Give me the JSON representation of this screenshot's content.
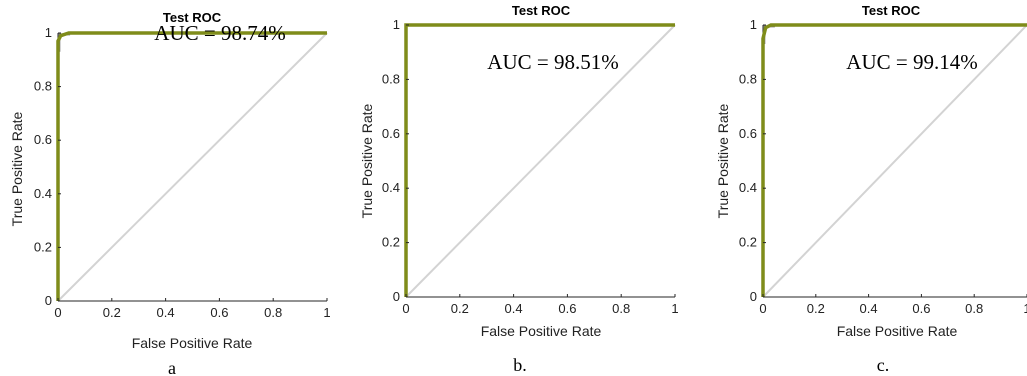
{
  "figure": {
    "colors": {
      "roc": "#7f8c1a",
      "diagonal": "#d3d3d3",
      "axis": "#262626",
      "near_origin": "#808080"
    }
  },
  "chart_data": [
    {
      "type": "line",
      "title": "Test ROC",
      "xlabel": "False Positive Rate",
      "ylabel": "True Positive Rate",
      "xlim": [
        0,
        1
      ],
      "ylim": [
        0,
        1
      ],
      "xticks": [
        "0",
        "0.2",
        "0.4",
        "0.6",
        "0.8",
        "1"
      ],
      "yticks": [
        "0",
        "0.2",
        "0.4",
        "0.6",
        "0.8",
        "1"
      ],
      "annotation": "AUC = 98.74%",
      "caption": "a",
      "series": [
        {
          "x": [
            0,
            0,
            0.01,
            0.04,
            1
          ],
          "y": [
            0,
            0.97,
            0.99,
            1,
            1
          ]
        },
        {
          "x": [
            0,
            1
          ],
          "y": [
            0,
            1
          ]
        }
      ]
    },
    {
      "type": "line",
      "title": "Test ROC",
      "xlabel": "False Positive Rate",
      "ylabel": "True Positive Rate",
      "xlim": [
        0,
        1
      ],
      "ylim": [
        0,
        1
      ],
      "xticks": [
        "0",
        "0.2",
        "0.4",
        "0.6",
        "0.8",
        "1"
      ],
      "yticks": [
        "0",
        "0.2",
        "0.4",
        "0.6",
        "0.8",
        "1"
      ],
      "annotation": "AUC = 98.51%",
      "caption": "b.",
      "series": [
        {
          "x": [
            0,
            0,
            1
          ],
          "y": [
            0,
            1,
            1
          ]
        },
        {
          "x": [
            0,
            1
          ],
          "y": [
            0,
            1
          ]
        }
      ]
    },
    {
      "type": "line",
      "title": "Test ROC",
      "xlabel": "False Positive Rate",
      "ylabel": "True Positive Rate",
      "xlim": [
        0,
        1
      ],
      "ylim": [
        0,
        1
      ],
      "xticks": [
        "0",
        "0.2",
        "0.4",
        "0.6",
        "0.8",
        "1"
      ],
      "yticks": [
        "0",
        "0.2",
        "0.4",
        "0.6",
        "0.8",
        "1"
      ],
      "annotation": "AUC = 99.14%",
      "caption": "c.",
      "series": [
        {
          "x": [
            0,
            0,
            0.01,
            0.03,
            1
          ],
          "y": [
            0,
            0.95,
            0.99,
            1,
            1
          ]
        },
        {
          "x": [
            0,
            1
          ],
          "y": [
            0,
            1
          ]
        }
      ]
    }
  ]
}
